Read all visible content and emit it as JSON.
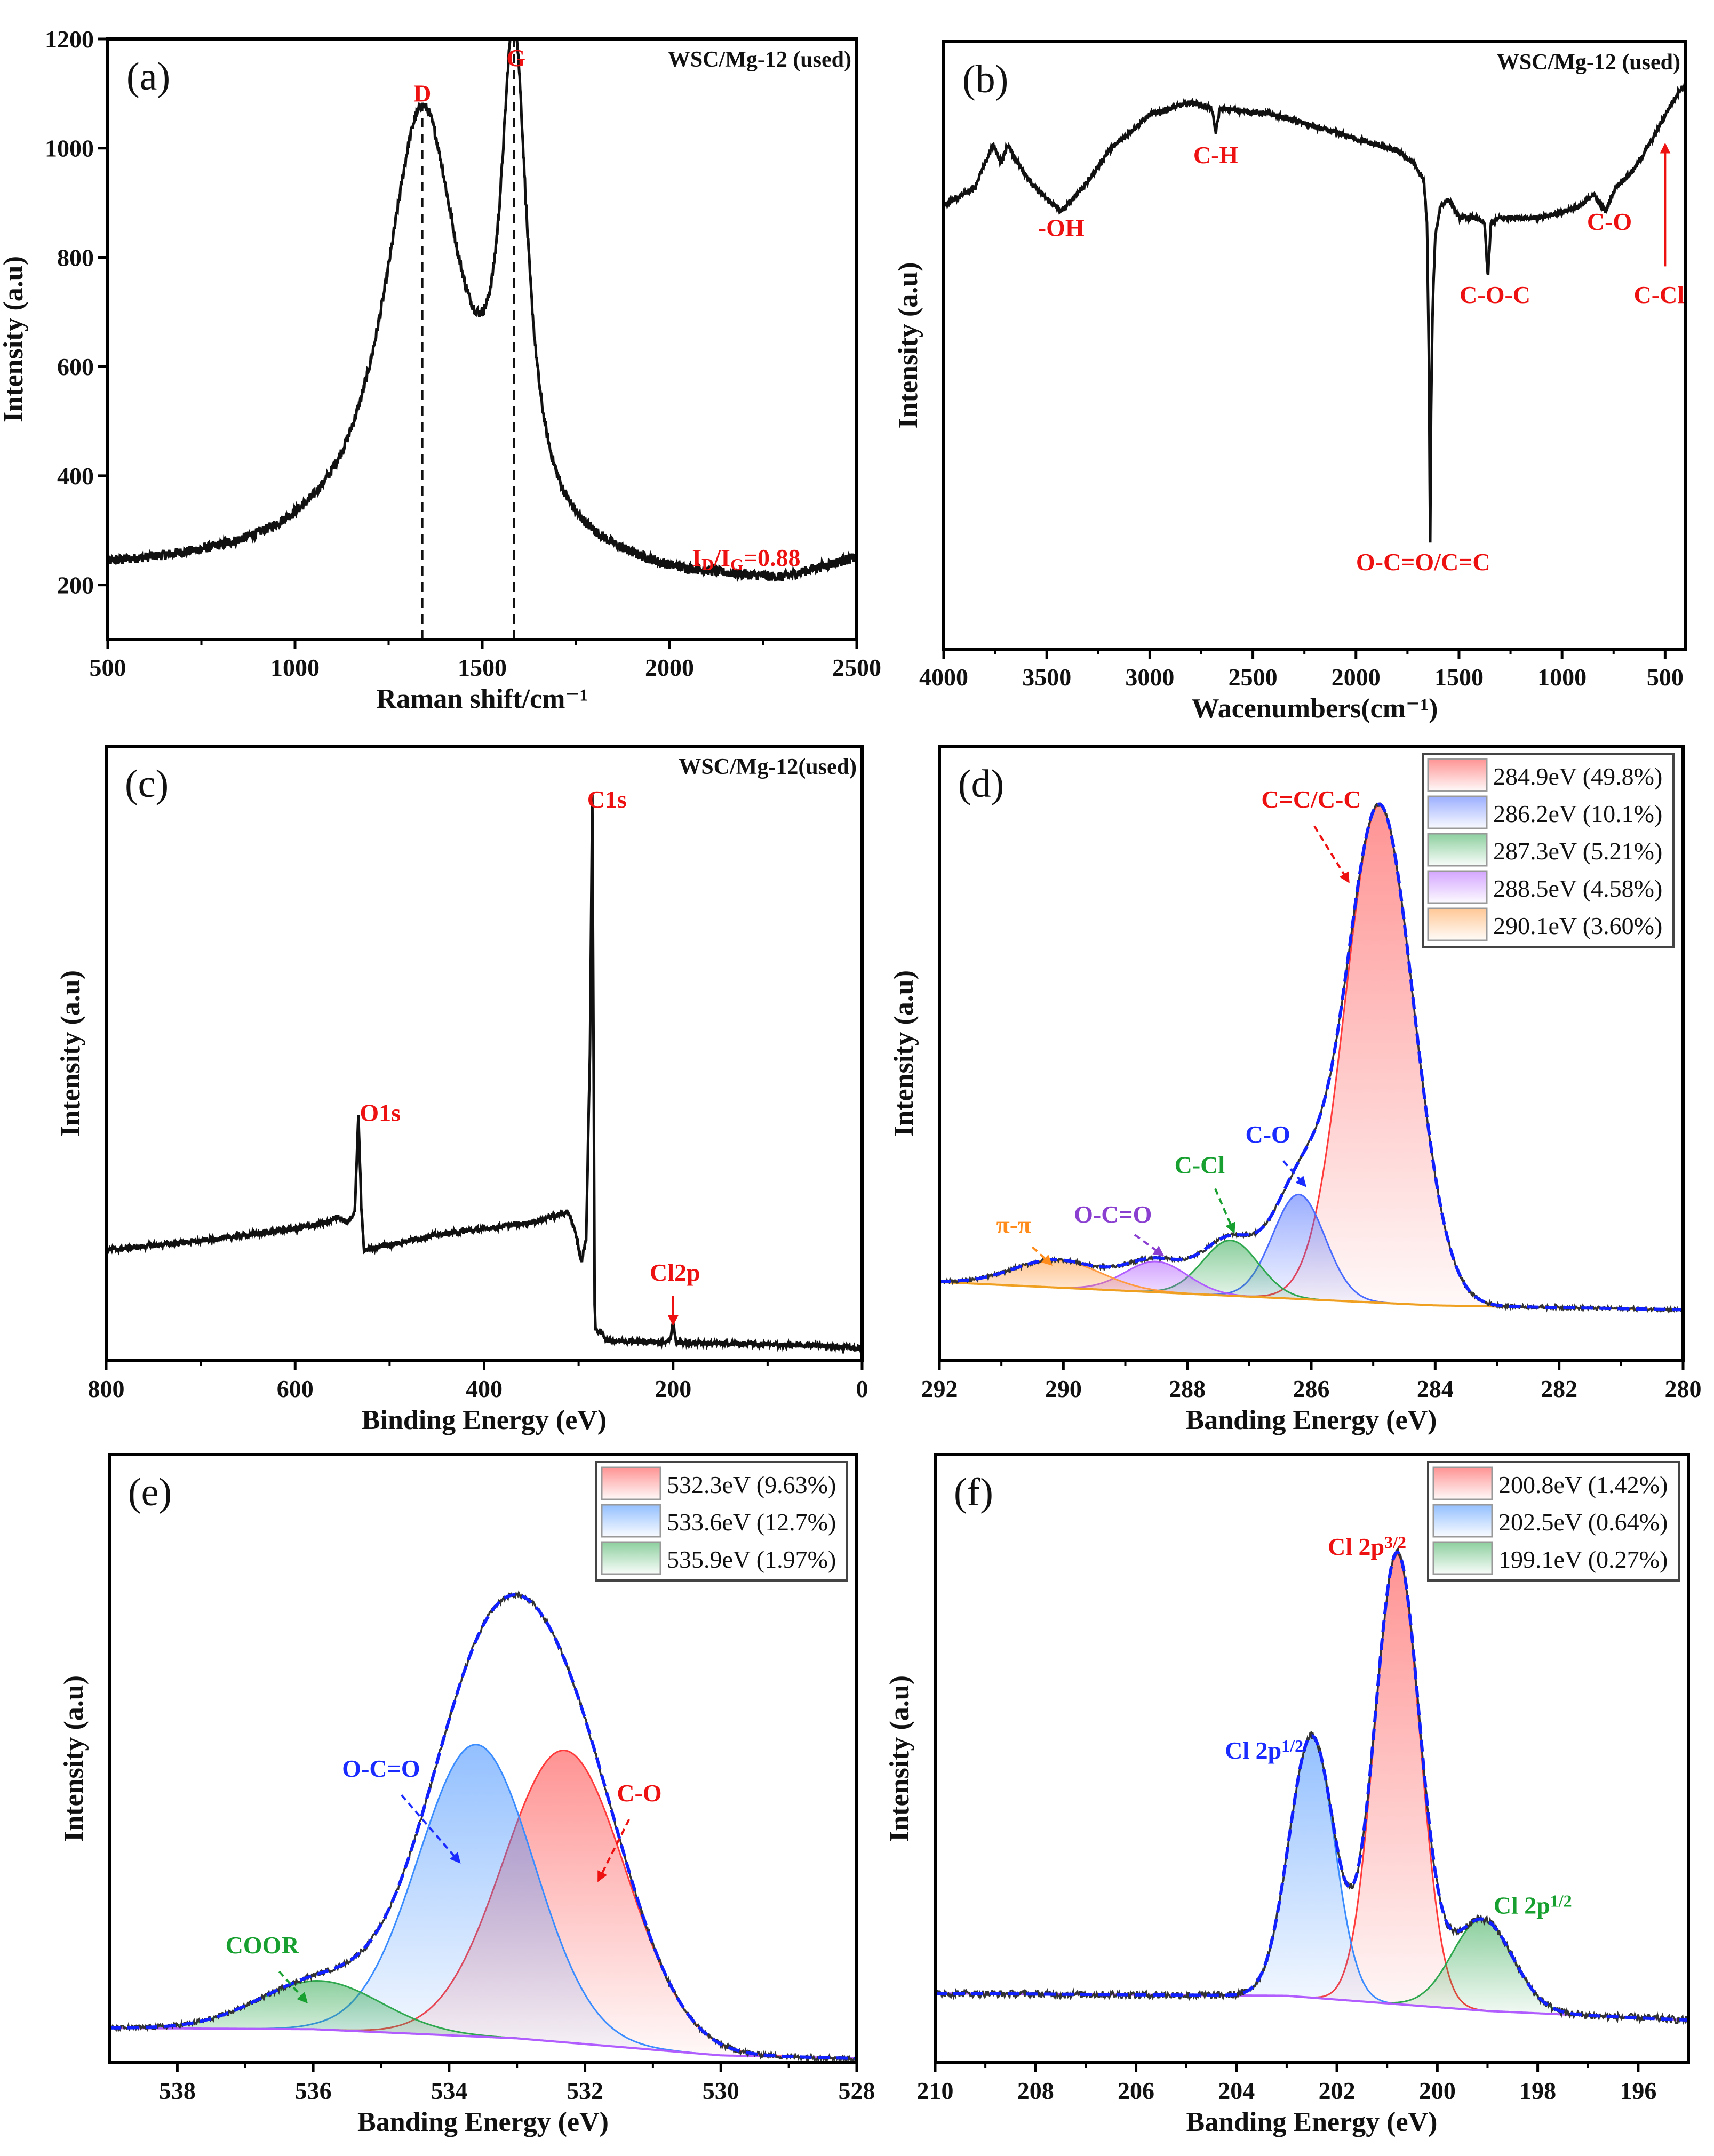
{
  "chart_data": [
    {
      "type": "line",
      "panel": "(a)",
      "sample_label": "WSC/Mg-12 (used)",
      "xlabel": "Raman shift/cm⁻¹",
      "ylabel": "Intensity (a.u)",
      "xlim": [
        500,
        2500
      ],
      "ylim": [
        100,
        1200
      ],
      "xticks": [
        500,
        1000,
        1500,
        2000,
        2500
      ],
      "yticks": [
        200,
        400,
        600,
        800,
        1000,
        1200
      ],
      "model": {
        "baseline": [
          [
            500,
            225
          ],
          [
            1000,
            232
          ],
          [
            1800,
            212
          ],
          [
            2000,
            200
          ],
          [
            2300,
            198
          ],
          [
            2500,
            240
          ]
        ],
        "peaks": [
          {
            "name": "D",
            "center": 1340,
            "amplitude": 830,
            "hwhm": 125,
            "shape": "lorentz"
          },
          {
            "name": "G",
            "center": 1585,
            "amplitude": 850,
            "hwhm": 42,
            "shape": "lorentz"
          }
        ],
        "color": "#111111"
      },
      "dashed_lines": [
        1340,
        1585
      ],
      "annotations": [
        {
          "parts": [
            {
              "t": "D"
            }
          ],
          "x": 1340,
          "y": 1085,
          "color": "#ee1111"
        },
        {
          "parts": [
            {
              "t": "G"
            }
          ],
          "x": 1590,
          "y": 1150,
          "color": "#ee1111"
        },
        {
          "parts": [
            {
              "t": "I"
            },
            {
              "t": "D",
              "s": "sub"
            },
            {
              "t": "/I"
            },
            {
              "t": "G",
              "s": "sub"
            },
            {
              "t": "=0.88"
            }
          ],
          "x": 2205,
          "y": 235,
          "color": "#ee1111"
        }
      ]
    },
    {
      "type": "line",
      "panel": "(b)",
      "sample_label": "WSC/Mg-12 (used)",
      "xlabel": "Wacenumbers(cm⁻¹)",
      "ylabel": "Intensity (a.u)",
      "xlim": [
        4000,
        400
      ],
      "ylim": [
        0,
        1
      ],
      "xticks": [
        4000,
        3500,
        3000,
        2500,
        2000,
        1500,
        1000,
        500
      ],
      "yticks": [],
      "points": [
        [
          4000,
          0.73
        ],
        [
          3850,
          0.76
        ],
        [
          3760,
          0.83
        ],
        [
          3720,
          0.8
        ],
        [
          3690,
          0.83
        ],
        [
          3640,
          0.8
        ],
        [
          3560,
          0.76
        ],
        [
          3430,
          0.72
        ],
        [
          3300,
          0.77
        ],
        [
          3200,
          0.82
        ],
        [
          3000,
          0.88
        ],
        [
          2800,
          0.9
        ],
        [
          2700,
          0.89
        ],
        [
          2680,
          0.85
        ],
        [
          2660,
          0.89
        ],
        [
          2400,
          0.88
        ],
        [
          2300,
          0.87
        ],
        [
          2000,
          0.84
        ],
        [
          1800,
          0.82
        ],
        [
          1720,
          0.8
        ],
        [
          1670,
          0.77
        ],
        [
          1655,
          0.7
        ],
        [
          1645,
          0.45
        ],
        [
          1640,
          0.16
        ],
        [
          1635,
          0.4
        ],
        [
          1628,
          0.56
        ],
        [
          1615,
          0.68
        ],
        [
          1590,
          0.73
        ],
        [
          1550,
          0.74
        ],
        [
          1500,
          0.71
        ],
        [
          1420,
          0.71
        ],
        [
          1375,
          0.7
        ],
        [
          1360,
          0.61
        ],
        [
          1345,
          0.7
        ],
        [
          1300,
          0.71
        ],
        [
          1100,
          0.71
        ],
        [
          900,
          0.73
        ],
        [
          850,
          0.75
        ],
        [
          790,
          0.72
        ],
        [
          740,
          0.76
        ],
        [
          650,
          0.79
        ],
        [
          560,
          0.84
        ],
        [
          500,
          0.88
        ],
        [
          430,
          0.92
        ],
        [
          400,
          0.93
        ]
      ],
      "color": "#111111",
      "annotations": [
        {
          "parts": [
            {
              "t": "-OH"
            }
          ],
          "x": 3430,
          "y": 0.68,
          "color": "#ee1111"
        },
        {
          "parts": [
            {
              "t": "C-H"
            }
          ],
          "x": 2680,
          "y": 0.8,
          "color": "#ee1111"
        },
        {
          "parts": [
            {
              "t": "O-C=O/C=C"
            }
          ],
          "x": 1674,
          "y": 0.13,
          "color": "#ee1111"
        },
        {
          "parts": [
            {
              "t": "C-O-C"
            }
          ],
          "x": 1325,
          "y": 0.57,
          "color": "#ee1111"
        },
        {
          "parts": [
            {
              "t": "C-O"
            }
          ],
          "x": 770,
          "y": 0.69,
          "color": "#ee1111"
        },
        {
          "parts": [
            {
              "t": "C-Cl"
            }
          ],
          "x": 530,
          "y": 0.57,
          "color": "#ee1111",
          "arrow": [
            500,
            0.63,
            500,
            0.83
          ],
          "dashed": false
        }
      ]
    },
    {
      "type": "line",
      "panel": "(c)",
      "sample_label": "WSC/Mg-12(used)",
      "xlabel": "Binding Energy (eV)",
      "ylabel": "Intensity (a.u)",
      "xlim": [
        800,
        0
      ],
      "ylim": [
        0,
        1
      ],
      "xticks": [
        800,
        600,
        400,
        200,
        0
      ],
      "yticks": [],
      "points": [
        [
          800,
          0.18
        ],
        [
          700,
          0.195
        ],
        [
          600,
          0.215
        ],
        [
          565,
          0.225
        ],
        [
          555,
          0.235
        ],
        [
          545,
          0.225
        ],
        [
          537,
          0.24
        ],
        [
          533,
          0.4
        ],
        [
          530,
          0.25
        ],
        [
          527,
          0.18
        ],
        [
          450,
          0.205
        ],
        [
          350,
          0.225
        ],
        [
          320,
          0.238
        ],
        [
          310,
          0.24
        ],
        [
          302,
          0.2
        ],
        [
          297,
          0.16
        ],
        [
          292,
          0.2
        ],
        [
          288,
          0.5
        ],
        [
          285.5,
          0.92
        ],
        [
          284,
          0.45
        ],
        [
          283,
          0.09
        ],
        [
          282,
          0.05
        ],
        [
          275,
          0.045
        ],
        [
          270,
          0.033
        ],
        [
          210,
          0.03
        ],
        [
          203,
          0.035
        ],
        [
          200,
          0.065
        ],
        [
          197,
          0.03
        ],
        [
          150,
          0.028
        ],
        [
          50,
          0.025
        ],
        [
          0,
          0.02
        ]
      ],
      "color": "#111111",
      "annotations": [
        {
          "parts": [
            {
              "t": "O1s"
            }
          ],
          "x": 510,
          "y": 0.39,
          "color": "#ee1111"
        },
        {
          "parts": [
            {
              "t": "C1s"
            }
          ],
          "x": 270,
          "y": 0.9,
          "color": "#ee1111"
        },
        {
          "parts": [
            {
              "t": "Cl2p"
            }
          ],
          "x": 198,
          "y": 0.13,
          "color": "#ee1111",
          "arrow": [
            200,
            0.105,
            200,
            0.06
          ],
          "dashed": false
        }
      ]
    },
    {
      "type": "area",
      "panel": "(d)",
      "xlabel": "Banding Energy (eV)",
      "ylabel": "Intensity (a.u)",
      "xlim": [
        292,
        280
      ],
      "ylim": [
        0,
        1
      ],
      "xticks": [
        292,
        290,
        288,
        286,
        284,
        282,
        280
      ],
      "yticks": [],
      "baseline": {
        "points": [
          [
            292,
            0.128
          ],
          [
            284,
            0.09
          ],
          [
            280,
            0.083
          ]
        ],
        "color": "#f0a020"
      },
      "components": [
        {
          "center": 284.9,
          "amplitude": 0.81,
          "sigma": 0.55,
          "color": "#ff3b3b",
          "label": "284.9eV (49.8%)"
        },
        {
          "center": 286.2,
          "amplitude": 0.17,
          "sigma": 0.42,
          "color": "#4a6cff",
          "label": "286.2eV (10.1%)"
        },
        {
          "center": 287.3,
          "amplitude": 0.09,
          "sigma": 0.45,
          "color": "#2fa84f",
          "label": "287.3eV (5.21%)"
        },
        {
          "center": 288.5,
          "amplitude": 0.05,
          "sigma": 0.5,
          "color": "#b05cff",
          "label": "288.5eV (4.58%)"
        },
        {
          "center": 290.1,
          "amplitude": 0.045,
          "sigma": 0.7,
          "color": "#ff9a40",
          "label": "290.1eV (3.60%)"
        }
      ],
      "legend": "top-right",
      "annotations": [
        {
          "parts": [
            {
              "t": "C=C/C-C"
            }
          ],
          "x": 286.0,
          "y": 0.9,
          "color": "#ee1111",
          "arrow": [
            285.95,
            0.87,
            285.4,
            0.78
          ],
          "dashed": true
        },
        {
          "parts": [
            {
              "t": "C-O"
            }
          ],
          "x": 286.7,
          "y": 0.355,
          "color": "#1a2bff",
          "arrow": [
            286.45,
            0.325,
            286.1,
            0.285
          ],
          "dashed": true
        },
        {
          "parts": [
            {
              "t": "C-Cl"
            }
          ],
          "x": 287.8,
          "y": 0.305,
          "color": "#17a02f",
          "arrow": [
            287.55,
            0.28,
            287.25,
            0.21
          ],
          "dashed": true
        },
        {
          "parts": [
            {
              "t": "O-C=O"
            }
          ],
          "x": 289.2,
          "y": 0.225,
          "color": "#8a3fd0",
          "arrow": [
            288.85,
            0.205,
            288.4,
            0.172
          ],
          "dashed": true
        },
        {
          "parts": [
            {
              "t": "π-π"
            }
          ],
          "x": 290.8,
          "y": 0.208,
          "color": "#ff8c1a",
          "arrow": [
            290.5,
            0.185,
            290.2,
            0.157
          ],
          "dashed": true
        }
      ]
    },
    {
      "type": "area",
      "panel": "(e)",
      "xlabel": "Banding Energy (eV)",
      "ylabel": "Intensity (a.u)",
      "xlim": [
        539,
        528
      ],
      "ylim": [
        0,
        1
      ],
      "xticks": [
        538,
        536,
        534,
        532,
        530,
        528
      ],
      "yticks": [],
      "baseline": {
        "points": [
          [
            539,
            0.057
          ],
          [
            536,
            0.055
          ],
          [
            533,
            0.04
          ],
          [
            530,
            0.012
          ],
          [
            528,
            0.007
          ]
        ],
        "color": "#b05cff"
      },
      "components": [
        {
          "center": 532.3,
          "amplitude": 0.48,
          "sigma": 0.9,
          "color": "#ff3b3b",
          "label": "532.3eV (9.63%)"
        },
        {
          "center": 533.6,
          "amplitude": 0.48,
          "sigma": 0.85,
          "color": "#3a8cff",
          "label": "533.6eV (12.7%)"
        },
        {
          "center": 535.9,
          "amplitude": 0.08,
          "sigma": 0.9,
          "color": "#2fa84f",
          "label": "535.9eV (1.97%)"
        }
      ],
      "legend": "top-right",
      "annotations": [
        {
          "parts": [
            {
              "t": "O-C=O"
            }
          ],
          "x": 535.0,
          "y": 0.47,
          "color": "#1a2bff",
          "arrow": [
            534.7,
            0.44,
            533.85,
            0.33
          ],
          "dashed": true
        },
        {
          "parts": [
            {
              "t": "C-O"
            }
          ],
          "x": 531.2,
          "y": 0.43,
          "color": "#ee1111",
          "arrow": [
            531.35,
            0.4,
            531.8,
            0.3
          ],
          "dashed": true
        },
        {
          "parts": [
            {
              "t": "COOR"
            }
          ],
          "x": 536.75,
          "y": 0.18,
          "color": "#17a02f",
          "arrow": [
            536.5,
            0.15,
            536.1,
            0.1
          ],
          "dashed": true
        }
      ]
    },
    {
      "type": "area",
      "panel": "(f)",
      "xlabel": "Banding Energy (eV)",
      "ylabel": "Intensity (a.u)",
      "xlim": [
        210,
        195
      ],
      "ylim": [
        0,
        1
      ],
      "xticks": [
        210,
        208,
        206,
        204,
        202,
        200,
        198,
        196
      ],
      "yticks": [],
      "baseline": {
        "points": [
          [
            210,
            0.114
          ],
          [
            203,
            0.11
          ],
          [
            199,
            0.085
          ],
          [
            195,
            0.07
          ]
        ],
        "color": "#b05cff"
      },
      "components": [
        {
          "center": 200.8,
          "amplitude": 0.74,
          "sigma": 0.45,
          "color": "#ff3b3b",
          "label": "200.8eV (1.42%)"
        },
        {
          "center": 202.5,
          "amplitude": 0.43,
          "sigma": 0.45,
          "color": "#3a8cff",
          "label": "202.5eV (0.64%)"
        },
        {
          "center": 199.1,
          "amplitude": 0.15,
          "sigma": 0.6,
          "color": "#2fa84f",
          "label": "199.1eV (0.27%)"
        }
      ],
      "legend": "top-right",
      "annotations": [
        {
          "parts": [
            {
              "t": "Cl 2p"
            },
            {
              "t": "3/2",
              "s": "sup"
            }
          ],
          "x": 201.4,
          "y": 0.835,
          "color": "#ee1111"
        },
        {
          "parts": [
            {
              "t": "Cl 2p"
            },
            {
              "t": "1/2",
              "s": "sup"
            }
          ],
          "x": 203.45,
          "y": 0.5,
          "color": "#1a2bff"
        },
        {
          "parts": [
            {
              "t": "Cl 2p"
            },
            {
              "t": "1/2",
              "s": "sup"
            }
          ],
          "x": 198.1,
          "y": 0.245,
          "color": "#17a02f"
        }
      ]
    }
  ]
}
